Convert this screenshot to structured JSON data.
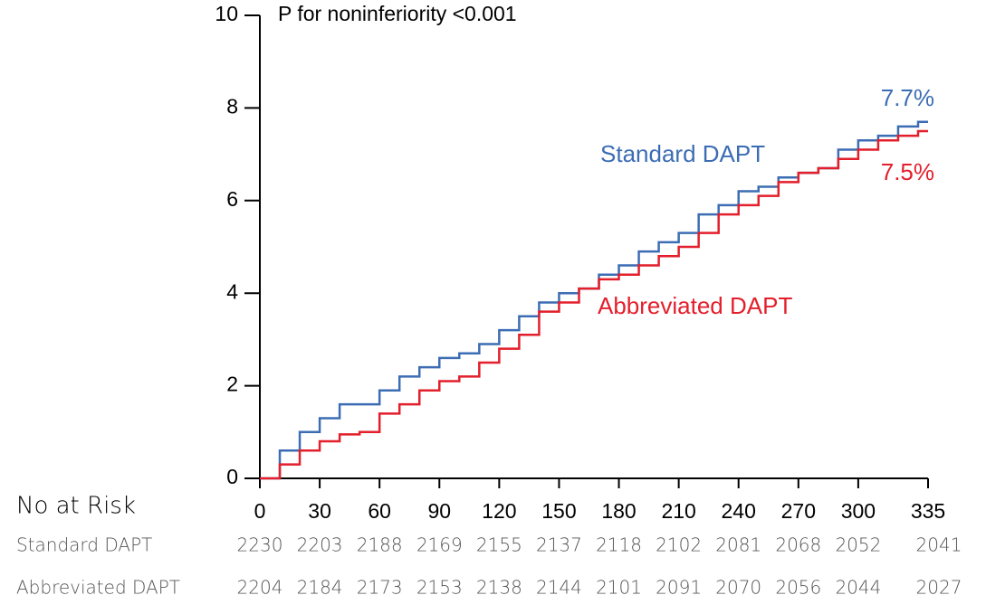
{
  "chart_data": {
    "type": "step",
    "annotation": "P for noninferiority <0.001",
    "x": [
      0,
      10,
      20,
      30,
      40,
      50,
      60,
      70,
      80,
      90,
      100,
      110,
      120,
      130,
      140,
      150,
      160,
      170,
      180,
      190,
      200,
      210,
      220,
      230,
      240,
      250,
      260,
      270,
      280,
      290,
      300,
      310,
      320,
      330,
      335
    ],
    "series": [
      {
        "name": "Standard DAPT",
        "color": "#3c6db4",
        "end_label": "7.7%",
        "values": [
          0,
          0.6,
          1.0,
          1.3,
          1.6,
          1.6,
          1.9,
          2.2,
          2.4,
          2.6,
          2.7,
          2.9,
          3.2,
          3.5,
          3.8,
          4.0,
          4.1,
          4.4,
          4.6,
          4.9,
          5.1,
          5.3,
          5.7,
          5.9,
          6.2,
          6.3,
          6.5,
          6.6,
          6.7,
          7.1,
          7.3,
          7.4,
          7.6,
          7.7,
          7.7
        ]
      },
      {
        "name": "Abbreviated DAPT",
        "color": "#e31f2b",
        "end_label": "7.5%",
        "values": [
          0,
          0.3,
          0.6,
          0.8,
          0.95,
          1.0,
          1.4,
          1.6,
          1.9,
          2.1,
          2.2,
          2.5,
          2.8,
          3.1,
          3.6,
          3.8,
          4.1,
          4.3,
          4.4,
          4.6,
          4.8,
          5.0,
          5.3,
          5.7,
          5.9,
          6.1,
          6.4,
          6.6,
          6.7,
          6.9,
          7.1,
          7.3,
          7.4,
          7.5,
          7.5
        ]
      }
    ],
    "xlim": [
      0,
      335
    ],
    "xticks": [
      0,
      30,
      60,
      90,
      120,
      150,
      180,
      210,
      240,
      270,
      300,
      335
    ],
    "ylim": [
      0,
      10
    ],
    "yticks": [
      0,
      2,
      4,
      6,
      8,
      10
    ],
    "risk_table": {
      "title": "No at Risk",
      "rows": [
        {
          "values": [
            2230,
            2203,
            2188,
            2169,
            2155,
            2137,
            2118,
            2102,
            2081,
            2068,
            2052,
            2041
          ]
        },
        {
          "values": [
            2204,
            2184,
            2173,
            2153,
            2138,
            2144,
            2101,
            2091,
            2070,
            2056,
            2044,
            2027
          ]
        }
      ]
    }
  }
}
